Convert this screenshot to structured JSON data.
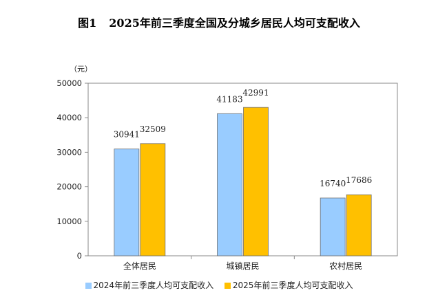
{
  "figure": {
    "label": "图1",
    "title": "2025年前三季度全国及分城乡居民人均可支配收入"
  },
  "colors": {
    "series_2024": "#99CCFF",
    "series_2025": "#FFC000",
    "axis": "#888888"
  },
  "chart_data": {
    "type": "bar",
    "title": "2025年前三季度全国及分城乡居民人均可支配收入",
    "unit_label": "（元）",
    "categories": [
      "全体居民",
      "城镇居民",
      "农村居民"
    ],
    "series": [
      {
        "name": "2024年前三季度人均可支配收入",
        "values": [
          30941,
          41183,
          16740
        ]
      },
      {
        "name": "2025年前三季度人均可支配收入",
        "values": [
          32509,
          42991,
          17686
        ]
      }
    ],
    "ylim": [
      0,
      50000
    ],
    "yticks": [
      0,
      10000,
      20000,
      30000,
      40000,
      50000
    ],
    "legend": "bottom"
  }
}
